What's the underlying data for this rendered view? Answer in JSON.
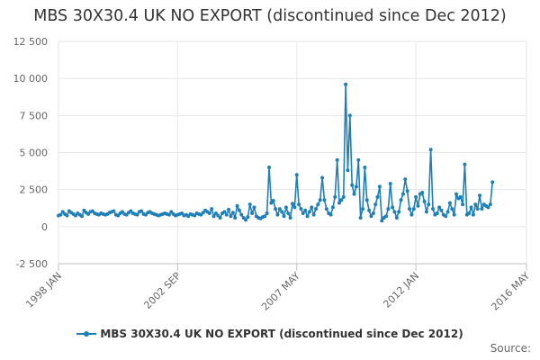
{
  "colors": {
    "series": "#1f7fb6",
    "grid": "#e6e6e6",
    "axis": "#c0c0c0",
    "text": "#666666"
  },
  "credits": "Source:",
  "chart_data": {
    "type": "line",
    "title": "MBS 30X30.4 UK NO EXPORT (discontinued since Dec 2012)",
    "xlabel": "",
    "ylabel": "",
    "x_start": "1998-01",
    "x_range": [
      "1998-01",
      "2016-05"
    ],
    "ylim": [
      -2500,
      12500
    ],
    "y_ticks": [
      -2500,
      0,
      2500,
      5000,
      7500,
      10000,
      12500
    ],
    "y_tick_labels": [
      "-2 500",
      "0",
      "2 500",
      "5 000",
      "7 500",
      "10 000",
      "12 500"
    ],
    "x_ticks": [
      "1998-01",
      "2002-09",
      "2007-05",
      "2012-01",
      "2016-05"
    ],
    "x_tick_labels": [
      "1998 JAN",
      "2002 SEP",
      "2007 MAY",
      "2012 JAN",
      "2016 MAY"
    ],
    "grid": true,
    "legend": "bottom-center",
    "series": [
      {
        "name": "MBS 30X30.4 UK NO EXPORT (discontinued since Dec 2012)",
        "values": [
          750,
          800,
          1000,
          850,
          750,
          1050,
          950,
          850,
          750,
          900,
          800,
          700,
          1100,
          950,
          850,
          1000,
          1050,
          900,
          850,
          800,
          900,
          850,
          800,
          850,
          950,
          1000,
          1050,
          800,
          750,
          900,
          1000,
          850,
          800,
          950,
          1050,
          900,
          850,
          800,
          1000,
          1050,
          850,
          800,
          950,
          1000,
          900,
          850,
          800,
          750,
          800,
          850,
          900,
          850,
          800,
          1000,
          850,
          750,
          800,
          850,
          900,
          750,
          800,
          700,
          850,
          800,
          750,
          900,
          850,
          800,
          950,
          1100,
          1000,
          900,
          1200,
          700,
          900,
          750,
          600,
          900,
          1000,
          800,
          1150,
          700,
          950,
          600,
          1400,
          1100,
          800,
          600,
          450,
          650,
          1500,
          900,
          1300,
          700,
          600,
          550,
          650,
          700,
          900,
          4000,
          1600,
          1750,
          1200,
          800,
          1200,
          1000,
          700,
          1300,
          900,
          600,
          1550,
          1300,
          3500,
          1500,
          1200,
          900,
          1100,
          700,
          1000,
          1300,
          800,
          1200,
          1500,
          1800,
          3300,
          1800,
          1200,
          900,
          800,
          1300,
          2000,
          4500,
          1600,
          1800,
          2000,
          9600,
          3800,
          7500,
          2800,
          2200,
          2700,
          4500,
          600,
          1200,
          4000,
          1800,
          1100,
          700,
          900,
          1500,
          2000,
          2700,
          400,
          600,
          700,
          1200,
          2900,
          1300,
          1000,
          600,
          1000,
          1800,
          2200,
          3200,
          2400,
          1200,
          800,
          1200,
          2000,
          1400,
          2200,
          2300,
          1700,
          1000,
          1500,
          5200,
          1200,
          800,
          900,
          1300,
          1100,
          800,
          700,
          1000,
          1600,
          1200,
          800,
          2200,
          1900,
          2000,
          1500,
          4200,
          800,
          900,
          1300,
          800,
          1500,
          1200,
          2100,
          1200,
          1500,
          1400,
          1300,
          1500,
          3000
        ]
      }
    ]
  }
}
